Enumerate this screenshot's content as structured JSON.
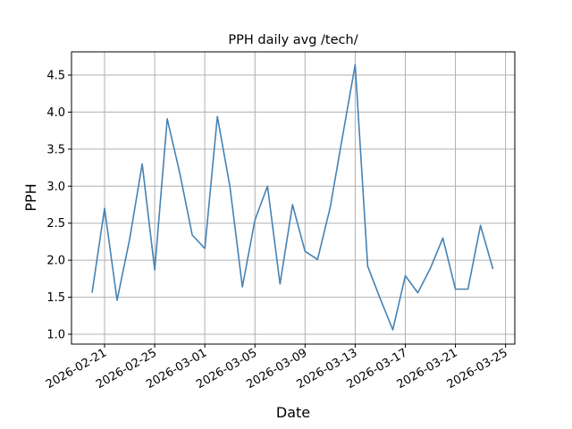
{
  "chart_data": {
    "type": "line",
    "title": "PPH daily avg /tech/",
    "xlabel": "Date",
    "ylabel": "PPH",
    "grid": true,
    "legend": null,
    "line_color": "#4682b4",
    "x_tick_labels": [
      "2026-02-21",
      "2026-02-25",
      "2026-03-01",
      "2026-03-05",
      "2026-03-09",
      "2026-03-13",
      "2026-03-17",
      "2026-03-21",
      "2026-03-25"
    ],
    "y_tick_labels": [
      "1.0",
      "1.5",
      "2.0",
      "2.5",
      "3.0",
      "3.5",
      "4.0",
      "4.5"
    ],
    "y_ticks": [
      1.0,
      1.5,
      2.0,
      2.5,
      3.0,
      3.5,
      4.0,
      4.5
    ],
    "ylim": [
      0.89,
      4.82
    ],
    "xlim": [
      "2026-02-19",
      "2026-03-25"
    ],
    "x": [
      "2026-02-20",
      "2026-02-21",
      "2026-02-22",
      "2026-02-23",
      "2026-02-24",
      "2026-02-25",
      "2026-02-26",
      "2026-02-27",
      "2026-02-28",
      "2026-03-01",
      "2026-03-02",
      "2026-03-03",
      "2026-03-04",
      "2026-03-05",
      "2026-03-06",
      "2026-03-07",
      "2026-03-08",
      "2026-03-09",
      "2026-03-10",
      "2026-03-11",
      "2026-03-12",
      "2026-03-13",
      "2026-03-14",
      "2026-03-15",
      "2026-03-16",
      "2026-03-17",
      "2026-03-18",
      "2026-03-19",
      "2026-03-20",
      "2026-03-21",
      "2026-03-22",
      "2026-03-23",
      "2026-03-24"
    ],
    "values": [
      1.56,
      2.7,
      1.46,
      2.28,
      3.3,
      1.87,
      3.91,
      3.18,
      2.34,
      2.16,
      3.94,
      3.0,
      1.64,
      2.54,
      3.0,
      1.68,
      2.75,
      2.12,
      2.01,
      2.71,
      3.68,
      4.64,
      1.92,
      1.48,
      1.06,
      1.79,
      1.56,
      1.89,
      2.3,
      1.61,
      1.61,
      2.47,
      1.88
    ]
  }
}
